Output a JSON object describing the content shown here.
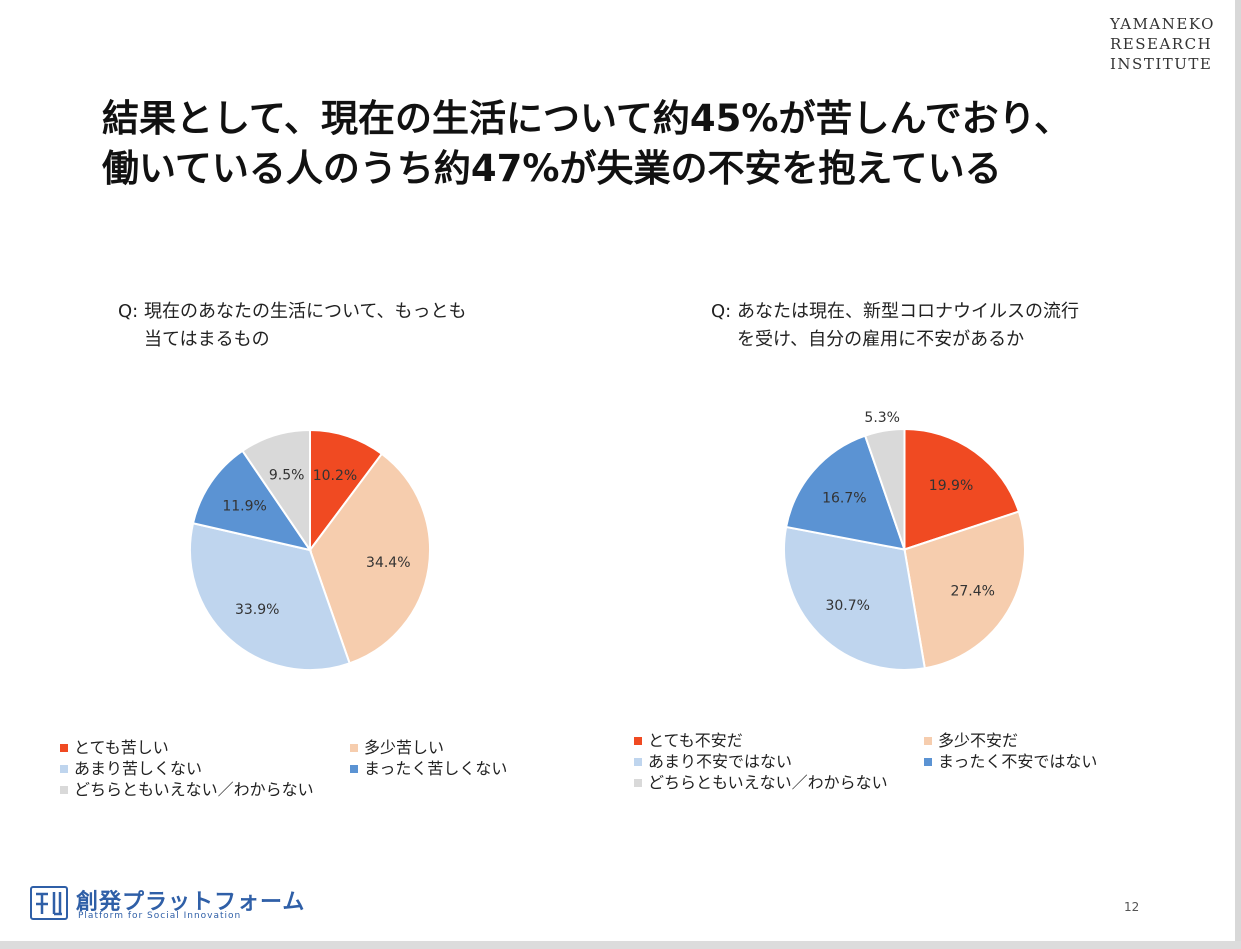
{
  "logo_lines": [
    "YAMANEKO",
    "RESEARCH",
    "INSTITUTE"
  ],
  "title": {
    "line1": "結果として、現在の生活について約45%が苦しんでおり、",
    "line2": "働いている人のうち約47%が失業の不安を抱えている"
  },
  "chart_data": [
    {
      "type": "pie",
      "title_line1": "Q: 現在のあなたの生活について、もっとも",
      "title_line2": "当てはまるもの",
      "labels": [
        "とても苦しい",
        "多少苦しい",
        "あまり苦しくない",
        "まったく苦しくない",
        "どちらともいえない／わからない"
      ],
      "values": [
        10.2,
        34.4,
        33.9,
        11.9,
        9.5
      ],
      "value_labels": [
        "10.2%",
        "34.4%",
        "33.9%",
        "11.9%",
        "9.5%"
      ],
      "colors": [
        "#f04a22",
        "#f6cdae",
        "#bfd5ee",
        "#5b93d3",
        "#d9d9d9"
      ],
      "legend": "bottom"
    },
    {
      "type": "pie",
      "title_line1": "Q: あなたは現在、新型コロナウイルスの流行",
      "title_line2": "を受け、自分の雇用に不安があるか",
      "labels": [
        "とても不安だ",
        "多少不安だ",
        "あまり不安ではない",
        "まったく不安ではない",
        "どちらともいえない／わからない"
      ],
      "values": [
        19.9,
        27.4,
        30.7,
        16.7,
        5.3
      ],
      "value_labels": [
        "19.9%",
        "27.4%",
        "30.7%",
        "16.7%",
        "5.3%"
      ],
      "colors": [
        "#f04a22",
        "#f6cdae",
        "#bfd5ee",
        "#5b93d3",
        "#d9d9d9"
      ],
      "legend": "bottom"
    }
  ],
  "footer": {
    "brand": "創発プラットフォーム",
    "tagline": "Platform for Social Innovation",
    "page_number": "12"
  }
}
